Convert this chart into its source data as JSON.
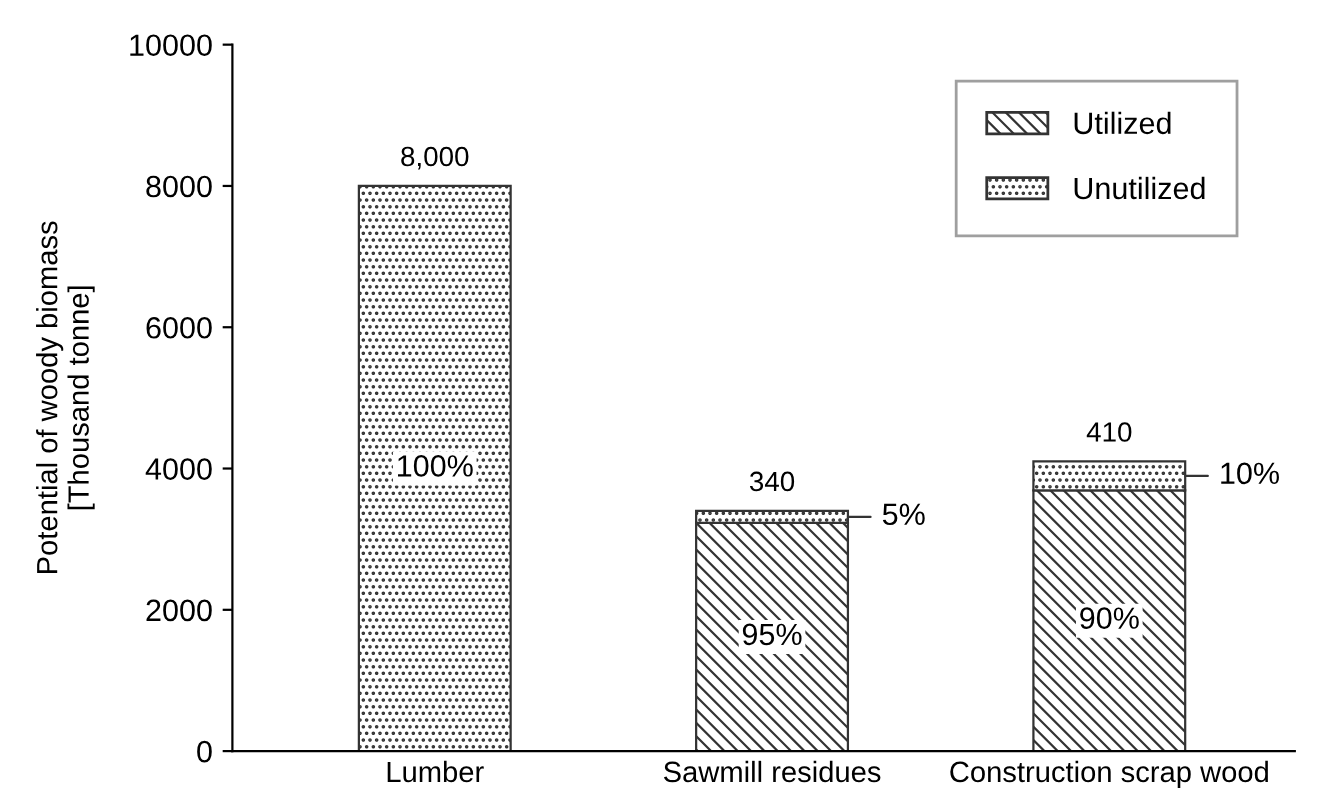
{
  "chart_data": {
    "type": "bar",
    "stacked": true,
    "ylabel": "Potential of woody biomass\n[Thousand tonne]",
    "categories": [
      "Lumber",
      "Sawmill residues",
      "Construction scrap wood"
    ],
    "series": [
      {
        "name": "Utilized",
        "color": "#333333",
        "values": [
          0,
          3230,
          3690
        ]
      },
      {
        "name": "Unutilized",
        "color": "#333333",
        "values": [
          8000,
          170,
          410
        ]
      }
    ],
    "annotations": [
      {
        "text": "8,000",
        "x": "Lumber",
        "y": 8000
      },
      {
        "text": "340",
        "x": "Sawmill residues",
        "y": 3400
      },
      {
        "text": "410",
        "x": "Construction scrap wood",
        "y": 4100
      },
      {
        "text": "100%",
        "x": "Lumber",
        "y": 4000
      },
      {
        "text": "95%",
        "x": "Sawmill residues",
        "y": 1615
      },
      "5%",
      {
        "text": "90%",
        "x": "Construction scrap wood",
        "y": 1845
      },
      "10%"
    ],
    "ylim": [
      0,
      10000
    ],
    "yticks": [
      0,
      2000,
      4000,
      6000,
      8000,
      10000
    ],
    "grid": false,
    "legend": "top right"
  }
}
